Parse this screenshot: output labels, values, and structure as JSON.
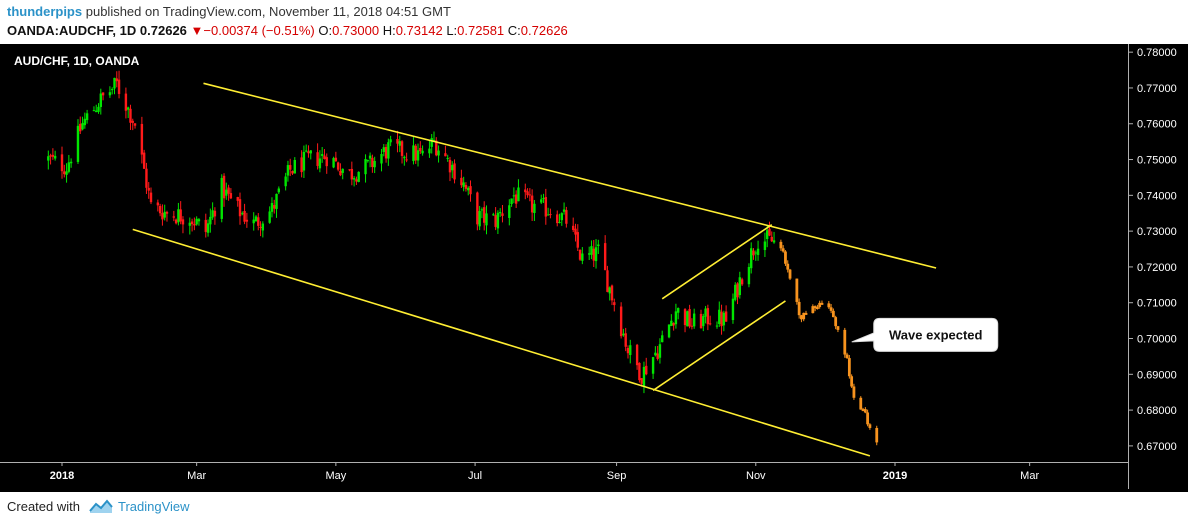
{
  "header": {
    "author": "thunderpips",
    "published_text": "published on TradingView.com, November 11, 2018 04:51 GMT",
    "symbol": "OANDA:AUDCHF, 1D",
    "last": "0.72626",
    "change_arrow": "▼",
    "change": "−0.00374 (−0.51%)",
    "o_label": "O:",
    "o_value": "0.73000",
    "h_label": "H:",
    "h_value": "0.73142",
    "l_label": "L:",
    "l_value": "0.72581",
    "c_label": "C:",
    "c_value": "0.72626"
  },
  "footer": {
    "created_with": "Created with",
    "brand": "TradingView"
  },
  "colors": {
    "background": "#000000",
    "up": "#00e600",
    "down": "#ff1a1a",
    "projection": "#f7931e",
    "channel": "#ffee33",
    "axis_text": "#ffffff"
  },
  "chart_data": {
    "type": "candlestick",
    "title": "AUD/CHF, 1D, OANDA",
    "x_ticks": [
      "2018",
      "Mar",
      "May",
      "Jul",
      "Sep",
      "Nov",
      "2019",
      "Mar"
    ],
    "y_ticks": [
      "0.78000",
      "0.77000",
      "0.76000",
      "0.75000",
      "0.74000",
      "0.73000",
      "0.72000",
      "0.71000",
      "0.70000",
      "0.69000",
      "0.68000",
      "0.67000"
    ],
    "ylim": [
      0.6655,
      0.782
    ],
    "price_path": [
      [
        "2017-12-26",
        0.75
      ],
      [
        "2018-01-03",
        0.748
      ],
      [
        "2018-01-10",
        0.76
      ],
      [
        "2018-01-17",
        0.766
      ],
      [
        "2018-01-25",
        0.771
      ],
      [
        "2018-02-02",
        0.76
      ],
      [
        "2018-02-09",
        0.737
      ],
      [
        "2018-02-16",
        0.735
      ],
      [
        "2018-02-26",
        0.734
      ],
      [
        "2018-03-05",
        0.73
      ],
      [
        "2018-03-12",
        0.742
      ],
      [
        "2018-03-19",
        0.736
      ],
      [
        "2018-03-26",
        0.732
      ],
      [
        "2018-04-03",
        0.736
      ],
      [
        "2018-04-11",
        0.747
      ],
      [
        "2018-04-19",
        0.75
      ],
      [
        "2018-04-27",
        0.751
      ],
      [
        "2018-05-07",
        0.746
      ],
      [
        "2018-05-15",
        0.748
      ],
      [
        "2018-05-24",
        0.753
      ],
      [
        "2018-06-01",
        0.752
      ],
      [
        "2018-06-08",
        0.751
      ],
      [
        "2018-06-13",
        0.755
      ],
      [
        "2018-06-20",
        0.749
      ],
      [
        "2018-06-26",
        0.743
      ],
      [
        "2018-07-02",
        0.734
      ],
      [
        "2018-07-10",
        0.733
      ],
      [
        "2018-07-18",
        0.74
      ],
      [
        "2018-07-26",
        0.737
      ],
      [
        "2018-08-03",
        0.736
      ],
      [
        "2018-08-10",
        0.733
      ],
      [
        "2018-08-17",
        0.722
      ],
      [
        "2018-08-24",
        0.724
      ],
      [
        "2018-08-31",
        0.71
      ],
      [
        "2018-09-06",
        0.697
      ],
      [
        "2018-09-12",
        0.69
      ],
      [
        "2018-09-20",
        0.698
      ],
      [
        "2018-09-27",
        0.708
      ],
      [
        "2018-10-04",
        0.704
      ],
      [
        "2018-10-12",
        0.706
      ],
      [
        "2018-10-19",
        0.705
      ],
      [
        "2018-10-26",
        0.718
      ],
      [
        "2018-11-02",
        0.728
      ],
      [
        "2018-11-09",
        0.727
      ]
    ],
    "projection_path": [
      [
        "2018-11-12",
        0.725
      ],
      [
        "2018-11-16",
        0.717
      ],
      [
        "2018-11-21",
        0.705
      ],
      [
        "2018-11-27",
        0.71
      ],
      [
        "2018-12-04",
        0.708
      ],
      [
        "2018-12-10",
        0.697
      ],
      [
        "2018-12-14",
        0.683
      ],
      [
        "2018-12-19",
        0.678
      ],
      [
        "2018-12-24",
        0.67
      ]
    ],
    "channel_lines": [
      {
        "from": [
          "2018-03-04",
          0.7713
        ],
        "to": [
          "2019-01-19",
          0.7197
        ]
      },
      {
        "from": [
          "2018-02-01",
          0.7305
        ],
        "to": [
          "2018-12-21",
          0.6672
        ]
      },
      {
        "from": [
          "2018-09-17",
          0.6855
        ],
        "to": [
          "2018-11-14",
          0.7105
        ]
      },
      {
        "from": [
          "2018-09-21",
          0.7111
        ],
        "to": [
          "2018-11-08",
          0.7318
        ]
      }
    ],
    "annotations": [
      {
        "text": "Wave expected",
        "date": "2018-12-24",
        "value": 0.701
      }
    ]
  }
}
